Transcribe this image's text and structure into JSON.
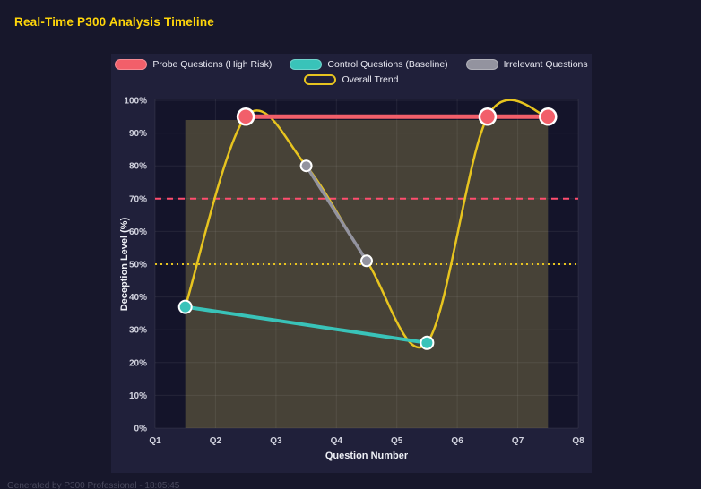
{
  "page": {
    "title": "Real-Time P300 Analysis Timeline",
    "footer": "Generated by P300 Professional - 18:05:45"
  },
  "chart_data": {
    "type": "line",
    "title": "Real-Time P300 Analysis Timeline",
    "xlabel": "Question Number",
    "ylabel": "Deception Level (%)",
    "xlim": [
      1,
      8
    ],
    "ylim": [
      0,
      100
    ],
    "grid": true,
    "legend_position": "top",
    "x_tick_values": [
      1,
      2,
      3,
      4,
      5,
      6,
      7,
      8
    ],
    "x_tick_labels": [
      "Q1",
      "Q2",
      "Q3",
      "Q4",
      "Q5",
      "Q6",
      "Q7",
      "Q8"
    ],
    "y_tick_values": [
      0,
      10,
      20,
      30,
      40,
      50,
      60,
      70,
      80,
      90,
      100
    ],
    "y_tick_labels": [
      "0%",
      "10%",
      "20%",
      "30%",
      "40%",
      "50%",
      "60%",
      "70%",
      "80%",
      "90%",
      "100%"
    ],
    "series": [
      {
        "name": "Probe Questions (High Risk)",
        "color": "#f25f6a",
        "x": [
          2.5,
          6.5,
          7.5
        ],
        "y": [
          95,
          95,
          95
        ],
        "line_width": 5,
        "marker_radius": 9,
        "smooth": false
      },
      {
        "name": "Control Questions (Baseline)",
        "color": "#39c3b9",
        "x": [
          1.5,
          5.5
        ],
        "y": [
          37,
          26
        ],
        "line_width": 4,
        "marker_radius": 7,
        "smooth": false
      },
      {
        "name": "Irrelevant Questions",
        "color": "#93939f",
        "x": [
          3.5,
          4.5
        ],
        "y": [
          80,
          51
        ],
        "line_width": 3.5,
        "marker_radius": 6,
        "smooth": false
      },
      {
        "name": "Overall Trend",
        "color": "#e7c41f",
        "x": [
          1.5,
          2.5,
          3.5,
          4.5,
          5.5,
          6.5,
          7.5
        ],
        "y": [
          37,
          95,
          80,
          51,
          26,
          95,
          95
        ],
        "line_width": 2.5,
        "marker_radius": 0,
        "smooth": true,
        "legend_outline": true
      }
    ],
    "thresholds": [
      {
        "value": 70,
        "color": "#ff4d6e",
        "dash": "7 6",
        "width": 2
      },
      {
        "value": 50,
        "color": "#e7c41f",
        "dash": "2 4",
        "width": 2
      }
    ],
    "band": {
      "x0": 1.5,
      "x1": 7.5,
      "y0": 0,
      "y1": 94,
      "color": "#93874a",
      "opacity": 0.4
    }
  }
}
